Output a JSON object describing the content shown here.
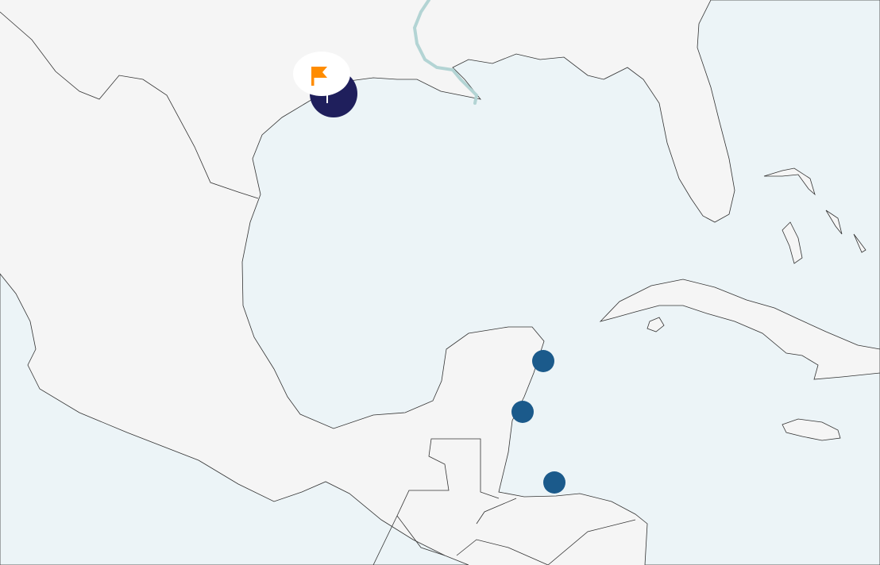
{
  "map": {
    "colors": {
      "land": "#f5f5f5",
      "water": "#ecf4f7",
      "coastline": "#333333",
      "river": "#b3d4d4",
      "marker": "#1b5a8b",
      "selected_marker": "#1f1f5c",
      "flag": "#ff8c00",
      "flag_bubble": "#ffffff"
    },
    "markers": [
      {
        "id": "marker-1",
        "type": "location-dot"
      },
      {
        "id": "marker-2",
        "type": "location-dot"
      },
      {
        "id": "marker-3",
        "type": "location-dot"
      }
    ],
    "selected_marker": {
      "type": "selected-location",
      "icon": "flag-icon"
    }
  }
}
